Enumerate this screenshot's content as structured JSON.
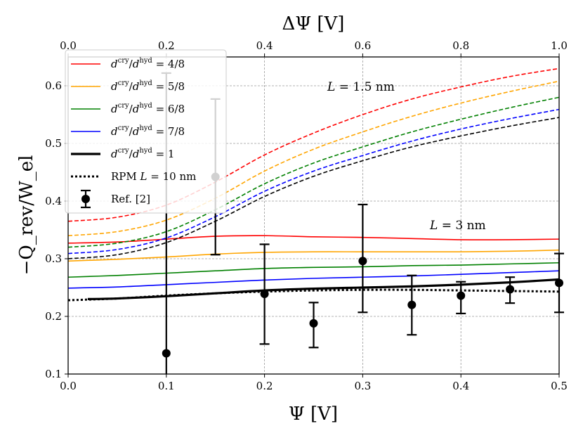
{
  "chart_data": {
    "type": "line",
    "xlabel": "Ψ [V]",
    "ylabel": "−Q_rev/W_el",
    "top_xlabel": "ΔΨ [V]",
    "xlim": [
      0.0,
      0.5
    ],
    "ylim": [
      0.1,
      0.65
    ],
    "top_xlim": [
      0.0,
      1.0
    ],
    "x_ticks": [
      "0.0",
      "0.1",
      "0.2",
      "0.3",
      "0.4",
      "0.5"
    ],
    "y_ticks": [
      "0.1",
      "0.2",
      "0.3",
      "0.4",
      "0.5",
      "0.6"
    ],
    "top_x_ticks": [
      "0.0",
      "0.2",
      "0.4",
      "0.6",
      "0.8",
      "1.0"
    ],
    "grid": true,
    "legend_position": "top-left",
    "annotations": [
      {
        "text": "L = 1.5 nm",
        "x": 0.27,
        "y": 0.6
      },
      {
        "text": "L = 3 nm",
        "x": 0.365,
        "y": 0.315
      }
    ],
    "series": [
      {
        "name": "dcry/dhyd = 4/8",
        "label_main": "d",
        "label_sup": "cry",
        "label_mid": "/d",
        "label_sup2": "hyd",
        "label_end": " = 4/8",
        "color": "#ff0000",
        "style": "solid",
        "group": "L = 3 nm",
        "x": [
          0.0,
          0.05,
          0.1,
          0.15,
          0.2,
          0.25,
          0.3,
          0.35,
          0.4,
          0.45,
          0.5
        ],
        "y": [
          0.327,
          0.329,
          0.334,
          0.339,
          0.34,
          0.338,
          0.337,
          0.335,
          0.333,
          0.333,
          0.334
        ]
      },
      {
        "name": "dcry/dhyd = 5/8",
        "label_main": "d",
        "label_sup": "cry",
        "label_mid": "/d",
        "label_sup2": "hyd",
        "label_end": " = 5/8",
        "color": "#ffa500",
        "style": "solid",
        "group": "L = 3 nm",
        "x": [
          0.0,
          0.05,
          0.1,
          0.15,
          0.2,
          0.25,
          0.3,
          0.35,
          0.4,
          0.45,
          0.5
        ],
        "y": [
          0.296,
          0.299,
          0.303,
          0.308,
          0.311,
          0.312,
          0.312,
          0.312,
          0.312,
          0.313,
          0.315
        ]
      },
      {
        "name": "dcry/dhyd = 6/8",
        "label_main": "d",
        "label_sup": "cry",
        "label_mid": "/d",
        "label_sup2": "hyd",
        "label_end": " = 6/8",
        "color": "#008000",
        "style": "solid",
        "group": "L = 3 nm",
        "x": [
          0.0,
          0.05,
          0.1,
          0.15,
          0.2,
          0.25,
          0.3,
          0.35,
          0.4,
          0.45,
          0.5
        ],
        "y": [
          0.268,
          0.271,
          0.275,
          0.279,
          0.283,
          0.285,
          0.286,
          0.288,
          0.289,
          0.291,
          0.293
        ]
      },
      {
        "name": "dcry/dhyd = 7/8",
        "label_main": "d",
        "label_sup": "cry",
        "label_mid": "/d",
        "label_sup2": "hyd",
        "label_end": " = 7/8",
        "color": "#0000ff",
        "style": "solid",
        "group": "L = 3 nm",
        "x": [
          0.0,
          0.05,
          0.1,
          0.15,
          0.2,
          0.25,
          0.3,
          0.35,
          0.4,
          0.45,
          0.5
        ],
        "y": [
          0.249,
          0.251,
          0.255,
          0.259,
          0.263,
          0.266,
          0.268,
          0.27,
          0.273,
          0.276,
          0.279
        ]
      },
      {
        "name": "dcry/dhyd = 1",
        "label_main": "d",
        "label_sup": "cry",
        "label_mid": "/d",
        "label_sup2": "hyd",
        "label_end": " = 1",
        "color": "#000000",
        "style": "thick",
        "group": "L = 3 nm",
        "x": [
          0.02,
          0.05,
          0.1,
          0.15,
          0.2,
          0.25,
          0.3,
          0.35,
          0.4,
          0.45,
          0.5
        ],
        "y": [
          0.23,
          0.231,
          0.235,
          0.24,
          0.245,
          0.248,
          0.25,
          0.252,
          0.255,
          0.259,
          0.264
        ]
      },
      {
        "name": "RPM L = 10 nm",
        "label_main": "RPM ",
        "label_sup": "",
        "label_mid": "L",
        "label_sup2": "",
        "label_end": " = 10 nm",
        "color": "#000000",
        "style": "dotted",
        "group": "L = 10 nm",
        "x": [
          0.0,
          0.05,
          0.1,
          0.15,
          0.2,
          0.25,
          0.3,
          0.35,
          0.4,
          0.45,
          0.5
        ],
        "y": [
          0.228,
          0.231,
          0.236,
          0.24,
          0.243,
          0.245,
          0.246,
          0.246,
          0.245,
          0.244,
          0.243
        ]
      },
      {
        "name": "dcry/dhyd = 4/8 (L = 1.5 nm)",
        "color": "#ff0000",
        "style": "dashed",
        "group": "L = 1.5 nm",
        "x": [
          0.0,
          0.05,
          0.1,
          0.15,
          0.2,
          0.25,
          0.3,
          0.35,
          0.4,
          0.45,
          0.5
        ],
        "y": [
          0.365,
          0.372,
          0.393,
          0.433,
          0.48,
          0.518,
          0.55,
          0.577,
          0.598,
          0.616,
          0.63
        ]
      },
      {
        "name": "dcry/dhyd = 5/8 (L = 1.5 nm)",
        "color": "#ffa500",
        "style": "dashed",
        "group": "L = 1.5 nm",
        "x": [
          0.0,
          0.05,
          0.1,
          0.15,
          0.2,
          0.25,
          0.3,
          0.35,
          0.4,
          0.45,
          0.5
        ],
        "y": [
          0.34,
          0.347,
          0.367,
          0.405,
          0.452,
          0.49,
          0.52,
          0.547,
          0.57,
          0.59,
          0.608
        ]
      },
      {
        "name": "dcry/dhyd = 6/8 (L = 1.5 nm)",
        "color": "#008000",
        "style": "dashed",
        "group": "L = 1.5 nm",
        "x": [
          0.0,
          0.05,
          0.1,
          0.15,
          0.2,
          0.25,
          0.3,
          0.35,
          0.4,
          0.45,
          0.5
        ],
        "y": [
          0.32,
          0.327,
          0.347,
          0.385,
          0.43,
          0.466,
          0.494,
          0.52,
          0.542,
          0.562,
          0.58
        ]
      },
      {
        "name": "dcry/dhyd = 7/8 (L = 1.5 nm)",
        "color": "#0000ff",
        "style": "dashed",
        "group": "L = 1.5 nm",
        "x": [
          0.0,
          0.05,
          0.1,
          0.15,
          0.2,
          0.25,
          0.3,
          0.35,
          0.4,
          0.45,
          0.5
        ],
        "y": [
          0.309,
          0.316,
          0.336,
          0.373,
          0.417,
          0.452,
          0.479,
          0.504,
          0.525,
          0.543,
          0.559
        ]
      },
      {
        "name": "dcry/dhyd = 1 (L = 1.5 nm)",
        "color": "#000000",
        "style": "dashed",
        "group": "L = 1.5 nm",
        "x": [
          0.0,
          0.05,
          0.1,
          0.15,
          0.2,
          0.25,
          0.3,
          0.35,
          0.4,
          0.45,
          0.5
        ],
        "y": [
          0.3,
          0.307,
          0.328,
          0.365,
          0.408,
          0.443,
          0.47,
          0.494,
          0.513,
          0.53,
          0.545
        ]
      }
    ],
    "reference": {
      "name": "Ref. [2]",
      "color": "#000000",
      "points": [
        {
          "x": 0.1,
          "y": 0.136,
          "err_low": 0.1,
          "err_high": 0.622
        },
        {
          "x": 0.15,
          "y": 0.442,
          "err_low": 0.307,
          "err_high": 0.577
        },
        {
          "x": 0.2,
          "y": 0.239,
          "err_low": 0.152,
          "err_high": 0.325
        },
        {
          "x": 0.25,
          "y": 0.188,
          "err_low": 0.146,
          "err_high": 0.224
        },
        {
          "x": 0.3,
          "y": 0.296,
          "err_low": 0.207,
          "err_high": 0.394
        },
        {
          "x": 0.35,
          "y": 0.22,
          "err_low": 0.168,
          "err_high": 0.271
        },
        {
          "x": 0.4,
          "y": 0.236,
          "err_low": 0.205,
          "err_high": 0.26
        },
        {
          "x": 0.45,
          "y": 0.247,
          "err_low": 0.223,
          "err_high": 0.268
        },
        {
          "x": 0.5,
          "y": 0.258,
          "err_low": 0.207,
          "err_high": 0.309
        }
      ]
    }
  }
}
